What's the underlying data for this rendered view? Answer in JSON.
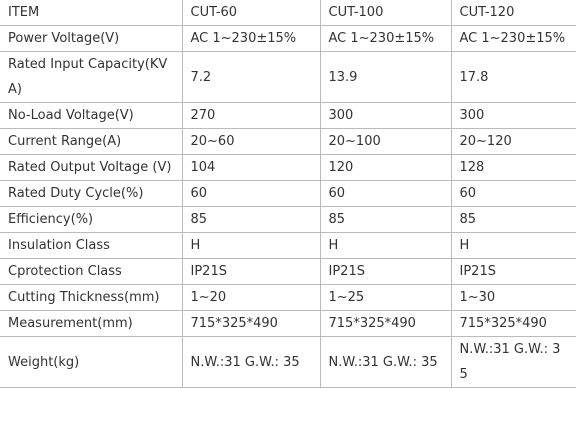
{
  "table": {
    "header": [
      "ITEM",
      "CUT-60",
      "CUT-100",
      "CUT-120"
    ],
    "rows": [
      [
        "Power Voltage(V)",
        "AC 1~230±15%",
        "AC 1~230±15%",
        "AC 1~230±15%"
      ],
      [
        "Rated Input Capacity(KVA)",
        "7.2",
        "13.9",
        "17.8"
      ],
      [
        "No-Load Voltage(V)",
        "270",
        "300",
        "300"
      ],
      [
        "Current Range(A)",
        "20~60",
        "20~100",
        "20~120"
      ],
      [
        "Rated Output Voltage (V)",
        "104",
        "120",
        "128"
      ],
      [
        "Rated Duty Cycle(%)",
        "60",
        "60",
        "60"
      ],
      [
        "Efficiency(%)",
        "85",
        "85",
        "85"
      ],
      [
        "Insulation Class",
        "H",
        "H",
        "H"
      ],
      [
        "Cprotection Class",
        "IP21S",
        "IP21S",
        "IP21S"
      ],
      [
        "Cutting Thickness(mm)",
        "1~20",
        "1~25",
        "1~30"
      ],
      [
        "Measurement(mm)",
        "715*325*490",
        "715*325*490",
        "715*325*490"
      ],
      [
        "Weight(kg)",
        "N.W.:31 G.W.: 35",
        "N.W.:31 G.W.: 35",
        "N.W.:31 G.W.: 35"
      ]
    ]
  }
}
